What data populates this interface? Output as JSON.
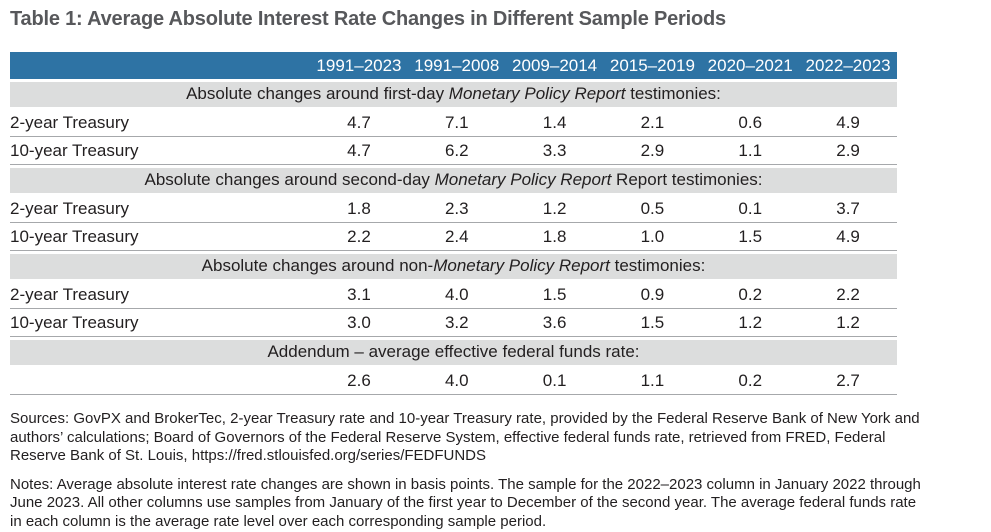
{
  "title": "Table 1: Average Absolute Interest Rate Changes in Different Sample Periods",
  "colors": {
    "header_bg": "#2e73a4",
    "header_text": "#ffffff",
    "section_band_bg": "#dcdddd",
    "row_border": "#a6a8ab",
    "title_text": "#57585b"
  },
  "table": {
    "columns": [
      "1991–2023",
      "1991–2008",
      "2009–2014",
      "2015–2019",
      "2020–2021",
      "2022–2023"
    ],
    "sections": [
      {
        "heading": {
          "prefix": "Absolute changes around first-day ",
          "italic": "Monetary Policy Report",
          "suffix": " testimonies:"
        },
        "rows": [
          {
            "label": "2-year Treasury",
            "values": [
              "4.7",
              "7.1",
              "1.4",
              "2.1",
              "0.6",
              "4.9"
            ]
          },
          {
            "label": "10-year Treasury",
            "values": [
              "4.7",
              "6.2",
              "3.3",
              "2.9",
              "1.1",
              "2.9"
            ]
          }
        ]
      },
      {
        "heading": {
          "prefix": "Absolute changes around second-day ",
          "italic": "Monetary Policy Report",
          "suffix": " Report testimonies:"
        },
        "rows": [
          {
            "label": "2-year Treasury",
            "values": [
              "1.8",
              "2.3",
              "1.2",
              "0.5",
              "0.1",
              "3.7"
            ]
          },
          {
            "label": "10-year Treasury",
            "values": [
              "2.2",
              "2.4",
              "1.8",
              "1.0",
              "1.5",
              "4.9"
            ]
          }
        ]
      },
      {
        "heading": {
          "prefix": "Absolute changes around non-",
          "italic": "Monetary Policy Report",
          "suffix": " testimonies:"
        },
        "rows": [
          {
            "label": "2-year Treasury",
            "values": [
              "3.1",
              "4.0",
              "1.5",
              "0.9",
              "0.2",
              "2.2"
            ]
          },
          {
            "label": "10-year Treasury",
            "values": [
              "3.0",
              "3.2",
              "3.6",
              "1.5",
              "1.2",
              "1.2"
            ]
          }
        ]
      },
      {
        "heading": {
          "prefix": "Addendum – average effective federal funds rate:",
          "italic": "",
          "suffix": ""
        },
        "rows": [
          {
            "label": "",
            "values": [
              "2.6",
              "4.0",
              "0.1",
              "1.1",
              "0.2",
              "2.7"
            ]
          }
        ]
      }
    ]
  },
  "sources": "Sources: GovPX and BrokerTec, 2-year Treasury rate and 10-year Treasury rate, provided by the Federal Reserve Bank of New York and authors’ calculations; Board of Governors of the Federal Reserve System, effective federal funds rate, retrieved from FRED, Federal Reserve Bank of St. Louis, https://fred.stlouisfed.org/series/FEDFUNDS",
  "notes": "Notes: Average absolute interest rate changes are shown in basis points. The sample for the 2022–2023 column in January 2022 through June 2023. All other columns use samples from January of the first year to December of the second year. The average federal funds rate in each column is the average rate level over each corresponding sample period."
}
